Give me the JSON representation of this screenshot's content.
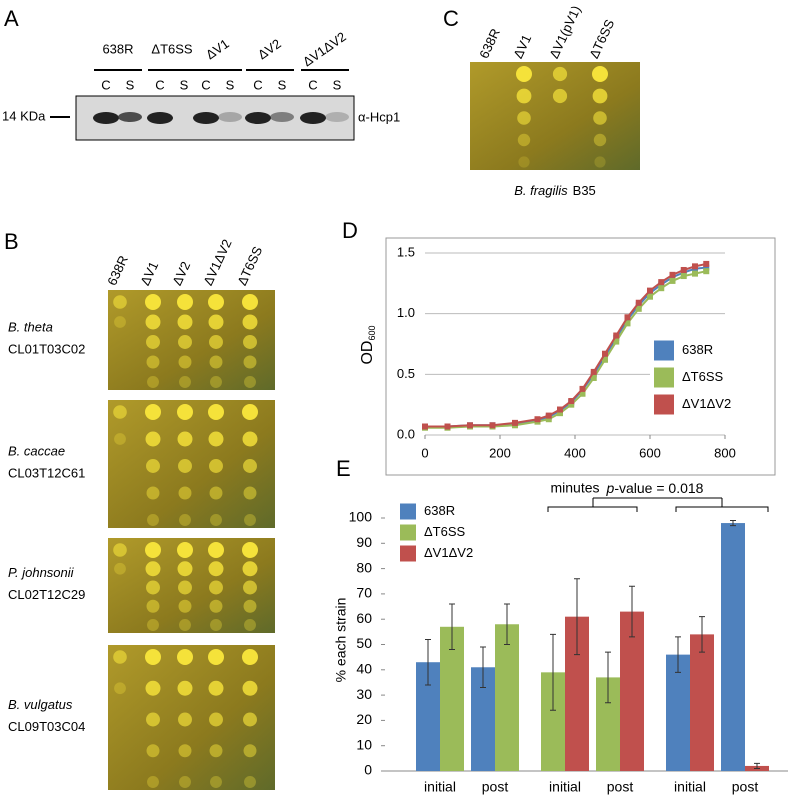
{
  "panels": {
    "a": {
      "label": "A",
      "strains": [
        "638R",
        "ΔT6SS",
        "ΔV1",
        "ΔV2",
        "ΔV1ΔV2"
      ],
      "fractions": [
        "C",
        "S"
      ],
      "marker": "14 KDa",
      "antibody": "α-Hcp1"
    },
    "b": {
      "label": "B",
      "strains": [
        "638R",
        "ΔV1",
        "ΔV2",
        "ΔV1ΔV2",
        "ΔT6SS"
      ],
      "species": [
        {
          "name": "B. theta",
          "strain": "CL01T03C02"
        },
        {
          "name": "B. caccae",
          "strain": "CL03T12C61"
        },
        {
          "name": "P. johnsonii",
          "strain": "CL02T12C29"
        },
        {
          "name": "B. vulgatus",
          "strain": "CL09T03C04"
        }
      ]
    },
    "c": {
      "label": "C",
      "strains": [
        "638R",
        "ΔV1",
        "ΔV1(pV1)",
        "ΔT6SS"
      ],
      "species": "B. fragilis",
      "strain": "B35"
    },
    "d": {
      "label": "D"
    },
    "e": {
      "label": "E"
    }
  },
  "chart_data": [
    {
      "type": "line",
      "x": [
        0,
        60,
        120,
        180,
        240,
        300,
        330,
        360,
        390,
        420,
        450,
        480,
        510,
        540,
        570,
        600,
        630,
        660,
        690,
        720,
        750
      ],
      "series": [
        {
          "name": "638R",
          "color": "#4f81bd",
          "values": [
            0.07,
            0.07,
            0.08,
            0.08,
            0.09,
            0.12,
            0.15,
            0.2,
            0.27,
            0.37,
            0.5,
            0.65,
            0.8,
            0.95,
            1.07,
            1.17,
            1.24,
            1.3,
            1.34,
            1.37,
            1.38
          ]
        },
        {
          "name": "ΔT6SS",
          "color": "#9bbb59",
          "values": [
            0.06,
            0.06,
            0.07,
            0.07,
            0.08,
            0.11,
            0.13,
            0.18,
            0.25,
            0.34,
            0.47,
            0.62,
            0.77,
            0.92,
            1.04,
            1.14,
            1.21,
            1.27,
            1.31,
            1.33,
            1.35
          ]
        },
        {
          "name": "ΔV1ΔV2",
          "color": "#c0504d",
          "values": [
            0.07,
            0.07,
            0.08,
            0.08,
            0.1,
            0.13,
            0.16,
            0.21,
            0.28,
            0.38,
            0.52,
            0.67,
            0.82,
            0.97,
            1.09,
            1.19,
            1.26,
            1.32,
            1.36,
            1.39,
            1.41
          ]
        }
      ],
      "xlim": [
        0,
        800
      ],
      "xticks": [
        0,
        200,
        400,
        600,
        800
      ],
      "ylim": [
        0,
        1.5
      ],
      "yticks": [
        {
          "value": 0,
          "label": "0.0"
        },
        {
          "value": 0.5,
          "label": "0.5"
        },
        {
          "value": 1,
          "label": "1.0"
        },
        {
          "value": 1.5,
          "label": "1.5"
        }
      ],
      "xlabel": "minutes",
      "ylabel": "OD",
      "ylabel_subscript": "600",
      "grid": true,
      "legend": "right"
    },
    {
      "type": "bar",
      "categories": [
        "initial",
        "post",
        "initial",
        "post",
        "initial",
        "post"
      ],
      "series": [
        {
          "name": "638R",
          "color": "#4f81bd",
          "values": [
            43,
            41,
            null,
            null,
            46,
            98
          ],
          "errors": [
            9,
            8,
            null,
            null,
            7,
            1
          ]
        },
        {
          "name": "ΔT6SS",
          "color": "#9bbb59",
          "values": [
            57,
            58,
            39,
            37,
            null,
            null
          ],
          "errors": [
            9,
            8,
            15,
            10,
            null,
            null
          ]
        },
        {
          "name": "ΔV1ΔV2",
          "color": "#c0504d",
          "values": [
            null,
            null,
            61,
            63,
            54,
            2
          ],
          "errors": [
            null,
            null,
            15,
            10,
            7,
            1
          ]
        }
      ],
      "ylim": [
        0,
        100
      ],
      "yticks": [
        0,
        10,
        20,
        30,
        40,
        50,
        60,
        70,
        80,
        90,
        100
      ],
      "ylabel": "% each strain",
      "annotation": {
        "italic": "p",
        "text": "-value = 0.018"
      },
      "legend": "upper left"
    }
  ]
}
